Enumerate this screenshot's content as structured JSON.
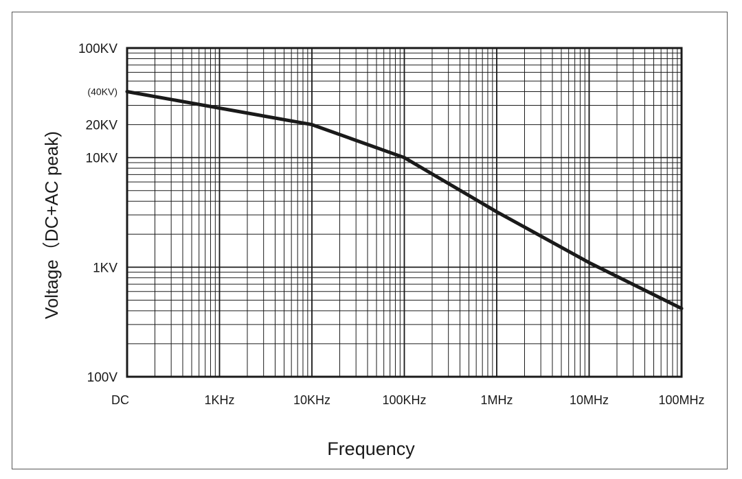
{
  "chart_data": {
    "type": "line",
    "title": "",
    "xlabel": "Frequency",
    "ylabel": "Voltage（DC+AC peak)",
    "xscale": "log",
    "yscale": "log",
    "xlim": [
      100,
      100000000
    ],
    "ylim": [
      100,
      100000
    ],
    "grid": true,
    "x_ticks": [
      {
        "value": 100,
        "label": "DC"
      },
      {
        "value": 1000,
        "label": "1KHz"
      },
      {
        "value": 10000,
        "label": "10KHz"
      },
      {
        "value": 100000,
        "label": "100KHz"
      },
      {
        "value": 1000000,
        "label": "1MHz"
      },
      {
        "value": 10000000,
        "label": "10MHz"
      },
      {
        "value": 100000000,
        "label": "100MHz"
      }
    ],
    "y_ticks": [
      {
        "value": 100,
        "label": "100V"
      },
      {
        "value": 1000,
        "label": "1KV"
      },
      {
        "value": 10000,
        "label": "10KV"
      },
      {
        "value": 20000,
        "label": "20KV"
      },
      {
        "value": 40000,
        "label": "(40KV)"
      },
      {
        "value": 100000,
        "label": "100KV"
      }
    ],
    "series": [
      {
        "x": [
          100,
          10000,
          100000,
          1000000,
          10000000,
          100000000
        ],
        "y": [
          40000,
          20000,
          10000,
          3200,
          1100,
          420
        ]
      }
    ],
    "colors": {
      "line": "#1a1a1a",
      "grid": "#1a1a1a",
      "frame": "#555555"
    }
  }
}
